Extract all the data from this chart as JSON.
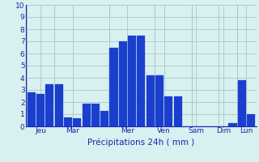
{
  "bar_values": [
    2.8,
    2.7,
    3.5,
    3.5,
    0.75,
    0.7,
    1.9,
    1.85,
    1.3,
    6.5,
    7.0,
    7.5,
    7.5,
    4.2,
    4.2,
    2.45,
    2.5,
    0.0,
    0.0,
    0.0,
    0.0,
    0.0,
    0.3,
    3.8,
    1.0
  ],
  "day_labels": [
    "Jeu",
    "Mar",
    "Mer",
    "Ven",
    "Sam",
    "Dim",
    "Lun"
  ],
  "day_tick_x": [
    1.0,
    4.5,
    10.5,
    14.5,
    18.0,
    21.0,
    23.5
  ],
  "day_sep_x": [
    -0.5,
    2.5,
    8.5,
    13.5,
    17.5,
    20.5,
    22.5
  ],
  "xlabel": "Précipitations 24h ( mm )",
  "ylim": [
    0,
    10
  ],
  "yticks": [
    0,
    1,
    2,
    3,
    4,
    5,
    6,
    7,
    8,
    9,
    10
  ],
  "bar_color": "#1a3fcf",
  "background_color": "#d8f0f0",
  "grid_color": "#a8c8c8",
  "label_color": "#2222aa",
  "xlabel_fontsize": 7.5,
  "tick_fontsize": 6.5
}
